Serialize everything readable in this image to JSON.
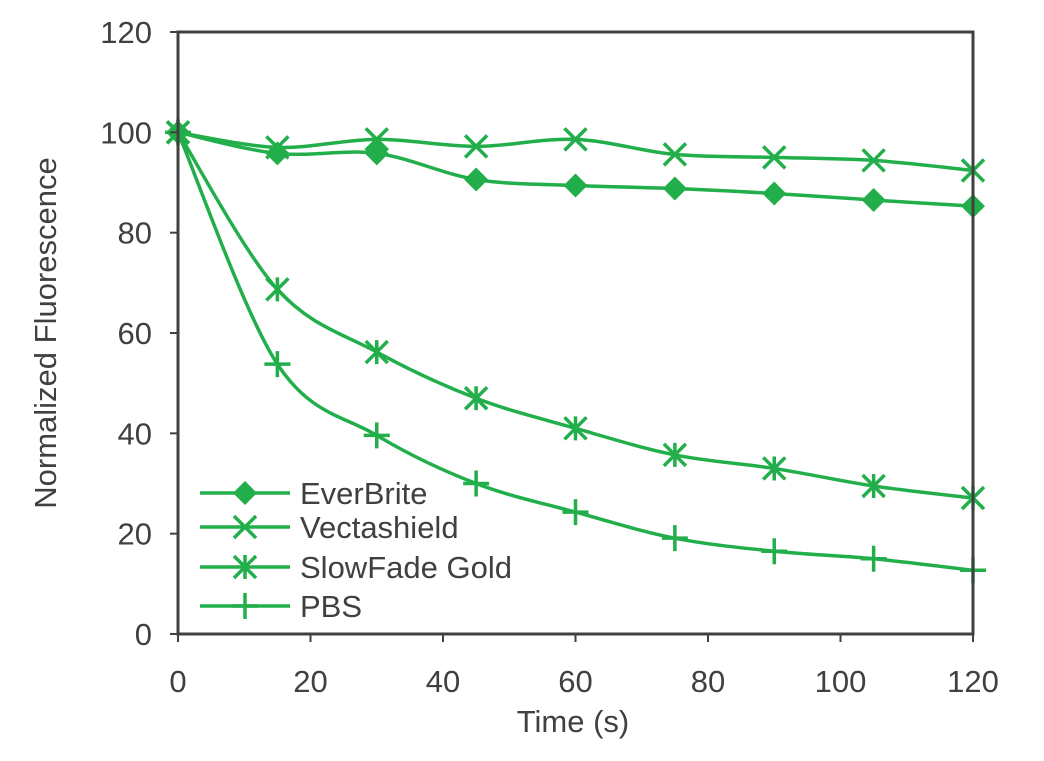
{
  "chart_data": {
    "type": "line",
    "title": "",
    "xlabel": "Time (s)",
    "ylabel": "Normalized Fluorescence",
    "xlim": [
      0,
      120
    ],
    "ylim": [
      0,
      120
    ],
    "xticks": [
      0,
      20,
      40,
      60,
      80,
      100,
      120
    ],
    "yticks": [
      0,
      20,
      40,
      60,
      80,
      100,
      120
    ],
    "grid": false,
    "legend_position": "bottom-left",
    "color": "#22AF4B",
    "axis_color": "#404040",
    "x": [
      0,
      15,
      30,
      45,
      60,
      75,
      90,
      105,
      120
    ],
    "series": [
      {
        "name": "EverBrite",
        "marker": "diamond",
        "values": [
          100,
          95.8,
          95.8,
          90.6,
          89.4,
          88.8,
          87.8,
          86.5,
          85.3
        ]
      },
      {
        "name": "Vectashield",
        "marker": "x",
        "values": [
          100,
          97.0,
          98.6,
          97.2,
          98.6,
          95.6,
          95.0,
          94.4,
          92.4
        ]
      },
      {
        "name": "SlowFade Gold",
        "marker": "asterisk",
        "values": [
          100,
          68.7,
          56.2,
          47.0,
          41.0,
          35.7,
          33.0,
          29.5,
          27.1
        ]
      },
      {
        "name": "PBS",
        "marker": "plus",
        "values": [
          100,
          53.8,
          39.6,
          30.0,
          24.3,
          19.1,
          16.5,
          15.0,
          12.7
        ]
      }
    ]
  }
}
